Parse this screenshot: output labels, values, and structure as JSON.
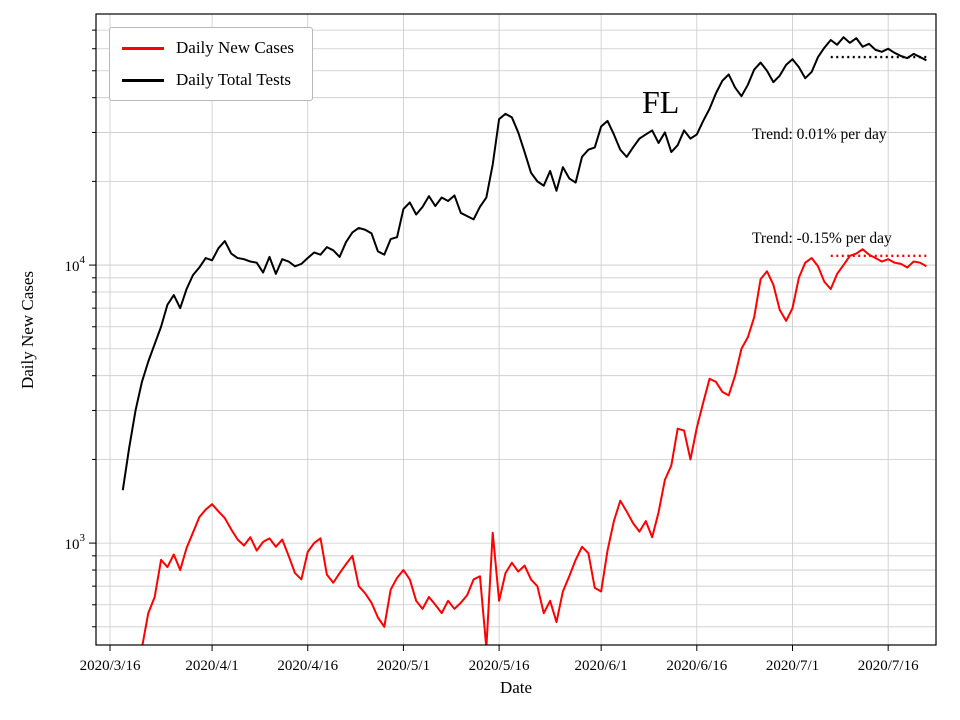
{
  "figure": {
    "background": "#ffffff"
  },
  "axes": {
    "x_label": "Date",
    "y_label": "Daily New Cases"
  },
  "legend": {
    "items": [
      {
        "label": "Daily New Cases",
        "color": "#ff0000"
      },
      {
        "label": "Daily Total Tests",
        "color": "#000000"
      }
    ]
  },
  "annotations": {
    "state": "FL",
    "trend_tests": "Trend: 0.01% per day",
    "trend_cases": "Trend: -0.15% per day"
  },
  "colors": {
    "cases": "#ff0000",
    "tests": "#000000",
    "grid": "#c9c9c9",
    "axis": "#000000"
  },
  "chart_data": {
    "type": "line",
    "title": "",
    "xlabel": "Date",
    "ylabel": "Daily New Cases",
    "y_scale": "log",
    "grid": true,
    "legend_position": "upper left",
    "x_axis": {
      "min_day": -2.2,
      "max_day": 129.5,
      "origin_date": "2020/3/16",
      "tick_days": [
        0,
        16,
        31,
        46,
        61,
        77,
        92,
        107,
        122
      ],
      "tick_labels": [
        "2020/3/16",
        "2020/4/1",
        "2020/4/16",
        "2020/5/1",
        "2020/5/16",
        "2020/6/1",
        "2020/6/16",
        "2020/7/1",
        "2020/7/16"
      ]
    },
    "y_axis": {
      "min": 430,
      "max": 80000,
      "major_ticks": [
        1000,
        10000
      ],
      "major_tick_exponents": [
        3,
        4
      ]
    },
    "series": [
      {
        "name": "Daily New Cases",
        "color": "#ff0000",
        "start_day": 5,
        "values": [
          420,
          560,
          640,
          870,
          820,
          910,
          800,
          960,
          1090,
          1240,
          1320,
          1380,
          1300,
          1230,
          1120,
          1030,
          980,
          1050,
          940,
          1010,
          1040,
          970,
          1030,
          900,
          780,
          740,
          930,
          1000,
          1040,
          770,
          720,
          780,
          840,
          900,
          700,
          660,
          610,
          540,
          500,
          680,
          750,
          800,
          740,
          620,
          580,
          640,
          600,
          560,
          620,
          580,
          610,
          650,
          740,
          760,
          420,
          1090,
          620,
          780,
          850,
          790,
          830,
          740,
          700,
          560,
          620,
          520,
          670,
          760,
          870,
          970,
          920,
          690,
          670,
          940,
          1200,
          1420,
          1300,
          1180,
          1100,
          1200,
          1050,
          1290,
          1690,
          1900,
          2580,
          2540,
          2000,
          2600,
          3200,
          3900,
          3800,
          3500,
          3400,
          4000,
          5000,
          5500,
          6500,
          8900,
          9500,
          8500,
          6900,
          6300,
          7000,
          9000,
          10200,
          10600,
          9900,
          8700,
          8200,
          9300,
          10000,
          10800,
          11000,
          11400,
          10900,
          10600,
          10300,
          10500,
          10200,
          10100,
          9800,
          10300,
          10200,
          9900
        ]
      },
      {
        "name": "Daily Total Tests",
        "color": "#000000",
        "start_day": 2,
        "values": [
          1550,
          2200,
          3000,
          3800,
          4500,
          5200,
          6000,
          7200,
          7800,
          7000,
          8200,
          9200,
          9800,
          10600,
          10400,
          11500,
          12200,
          11000,
          10600,
          10500,
          10300,
          10200,
          9400,
          10700,
          9300,
          10500,
          10300,
          9900,
          10100,
          10600,
          11100,
          10900,
          11600,
          11300,
          10700,
          12100,
          13100,
          13600,
          13400,
          13000,
          11200,
          10900,
          12400,
          12600,
          15900,
          16800,
          15200,
          16200,
          17700,
          16300,
          17500,
          17000,
          17800,
          15400,
          15000,
          14600,
          16200,
          17500,
          23000,
          33500,
          35000,
          34000,
          30000,
          25500,
          21500,
          20000,
          19300,
          21800,
          18500,
          22500,
          20500,
          19800,
          24500,
          26000,
          26500,
          31500,
          33000,
          29500,
          26000,
          24500,
          26500,
          28500,
          29500,
          30500,
          27500,
          30000,
          25500,
          27000,
          30500,
          28500,
          29500,
          33000,
          36500,
          41500,
          46000,
          48500,
          43500,
          40500,
          44500,
          50500,
          53500,
          50000,
          45500,
          48000,
          52500,
          55000,
          51500,
          47000,
          49500,
          56000,
          60500,
          64500,
          62000,
          66000,
          63000,
          65500,
          61000,
          62500,
          59500,
          58500,
          60000,
          58000,
          56500,
          55500,
          57500,
          56000,
          54500
        ]
      }
    ],
    "trend_lines": [
      {
        "name": "tests-trend",
        "color": "#000000",
        "day_start": 113,
        "day_end": 128,
        "value": 56000,
        "label": "Trend: 0.01% per day"
      },
      {
        "name": "cases-trend",
        "color": "#ff0000",
        "day_start": 113,
        "day_end": 128,
        "value": 10800,
        "label": "Trend: -0.15% per day"
      }
    ]
  }
}
